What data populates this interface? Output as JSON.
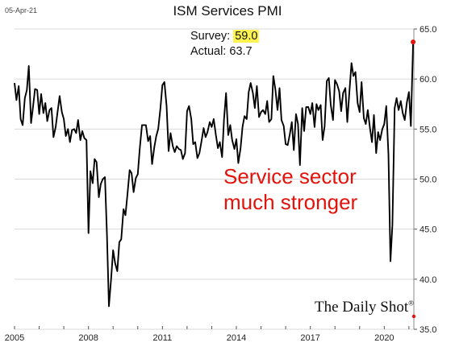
{
  "stamp": "05-Apr-21",
  "annotations": {
    "survey_label": "Survey:",
    "survey_value": "59.0",
    "actual_label": "Actual:",
    "actual_value": "63.7",
    "callout_line1": "Service sector",
    "callout_line2": "much stronger"
  },
  "brand": {
    "name": "The Daily Shot",
    "mark": "®"
  },
  "colors": {
    "line": "#000000",
    "highlight": "#fff44f",
    "marker": "#e3120b",
    "callout": "#e3120b",
    "grid": "#d9d9d9"
  },
  "chart_data": {
    "type": "line",
    "title": "ISM Services PMI",
    "xlabel": "",
    "ylabel": "",
    "x_ticks": [
      "2005",
      "2008",
      "2011",
      "2014",
      "2017",
      "2020"
    ],
    "y_ticks": [
      "35.0",
      "40.0",
      "45.0",
      "50.0",
      "55.0",
      "60.0",
      "65.0"
    ],
    "ylim": [
      35,
      65
    ],
    "xlim": [
      2005.0,
      2021.2
    ],
    "y_axis_position": "right",
    "grid": "horizontal",
    "series": [
      {
        "values": [
          [
            2005.0,
            59.6
          ],
          [
            2005.08,
            57.9
          ],
          [
            2005.17,
            59.3
          ],
          [
            2005.25,
            56.0
          ],
          [
            2005.33,
            55.4
          ],
          [
            2005.42,
            58.1
          ],
          [
            2005.5,
            58.9
          ],
          [
            2005.58,
            61.3
          ],
          [
            2005.67,
            55.6
          ],
          [
            2005.75,
            57.2
          ],
          [
            2005.83,
            59.0
          ],
          [
            2005.92,
            58.9
          ],
          [
            2006.0,
            56.5
          ],
          [
            2006.08,
            58.5
          ],
          [
            2006.17,
            56.6
          ],
          [
            2006.25,
            57.6
          ],
          [
            2006.33,
            55.8
          ],
          [
            2006.42,
            56.9
          ],
          [
            2006.5,
            57.1
          ],
          [
            2006.58,
            54.2
          ],
          [
            2006.67,
            55.2
          ],
          [
            2006.75,
            56.8
          ],
          [
            2006.83,
            58.3
          ],
          [
            2006.92,
            56.7
          ],
          [
            2007.0,
            56.0
          ],
          [
            2007.08,
            54.3
          ],
          [
            2007.17,
            55.0
          ],
          [
            2007.25,
            53.7
          ],
          [
            2007.33,
            54.9
          ],
          [
            2007.42,
            55.0
          ],
          [
            2007.5,
            54.6
          ],
          [
            2007.58,
            55.9
          ],
          [
            2007.67,
            53.9
          ],
          [
            2007.75,
            54.8
          ],
          [
            2007.83,
            54.1
          ],
          [
            2007.92,
            53.9
          ],
          [
            2008.0,
            44.6
          ],
          [
            2008.08,
            50.8
          ],
          [
            2008.17,
            49.6
          ],
          [
            2008.25,
            52.0
          ],
          [
            2008.33,
            51.7
          ],
          [
            2008.42,
            48.2
          ],
          [
            2008.5,
            49.5
          ],
          [
            2008.58,
            50.0
          ],
          [
            2008.67,
            50.2
          ],
          [
            2008.75,
            44.4
          ],
          [
            2008.83,
            37.3
          ],
          [
            2008.92,
            40.1
          ],
          [
            2009.0,
            42.9
          ],
          [
            2009.08,
            41.6
          ],
          [
            2009.17,
            40.8
          ],
          [
            2009.25,
            43.7
          ],
          [
            2009.33,
            44.0
          ],
          [
            2009.42,
            47.0
          ],
          [
            2009.5,
            46.4
          ],
          [
            2009.58,
            48.4
          ],
          [
            2009.67,
            50.9
          ],
          [
            2009.75,
            50.6
          ],
          [
            2009.83,
            48.7
          ],
          [
            2009.92,
            50.1
          ],
          [
            2010.0,
            50.5
          ],
          [
            2010.08,
            53.0
          ],
          [
            2010.17,
            55.4
          ],
          [
            2010.25,
            55.4
          ],
          [
            2010.33,
            55.4
          ],
          [
            2010.42,
            53.8
          ],
          [
            2010.5,
            54.3
          ],
          [
            2010.58,
            51.5
          ],
          [
            2010.67,
            53.2
          ],
          [
            2010.75,
            54.3
          ],
          [
            2010.83,
            55.0
          ],
          [
            2010.92,
            57.1
          ],
          [
            2011.0,
            59.4
          ],
          [
            2011.08,
            59.7
          ],
          [
            2011.17,
            57.3
          ],
          [
            2011.25,
            52.8
          ],
          [
            2011.33,
            54.6
          ],
          [
            2011.42,
            53.3
          ],
          [
            2011.5,
            52.7
          ],
          [
            2011.58,
            53.3
          ],
          [
            2011.67,
            53.0
          ],
          [
            2011.75,
            52.9
          ],
          [
            2011.83,
            52.0
          ],
          [
            2011.92,
            52.6
          ],
          [
            2012.0,
            56.8
          ],
          [
            2012.08,
            57.3
          ],
          [
            2012.17,
            56.0
          ],
          [
            2012.25,
            53.5
          ],
          [
            2012.33,
            53.7
          ],
          [
            2012.42,
            52.1
          ],
          [
            2012.5,
            52.6
          ],
          [
            2012.58,
            53.7
          ],
          [
            2012.67,
            55.1
          ],
          [
            2012.75,
            54.2
          ],
          [
            2012.83,
            54.7
          ],
          [
            2012.92,
            55.7
          ],
          [
            2013.0,
            55.2
          ],
          [
            2013.08,
            56.0
          ],
          [
            2013.17,
            54.4
          ],
          [
            2013.25,
            53.1
          ],
          [
            2013.33,
            53.7
          ],
          [
            2013.42,
            52.2
          ],
          [
            2013.5,
            56.0
          ],
          [
            2013.58,
            58.6
          ],
          [
            2013.67,
            54.4
          ],
          [
            2013.75,
            55.4
          ],
          [
            2013.83,
            53.9
          ],
          [
            2013.92,
            53.0
          ],
          [
            2014.0,
            54.0
          ],
          [
            2014.08,
            51.6
          ],
          [
            2014.17,
            53.1
          ],
          [
            2014.25,
            55.2
          ],
          [
            2014.33,
            56.3
          ],
          [
            2014.42,
            56.0
          ],
          [
            2014.5,
            58.7
          ],
          [
            2014.58,
            59.6
          ],
          [
            2014.67,
            58.6
          ],
          [
            2014.75,
            57.1
          ],
          [
            2014.83,
            59.3
          ],
          [
            2014.92,
            56.2
          ],
          [
            2015.0,
            56.7
          ],
          [
            2015.08,
            56.9
          ],
          [
            2015.17,
            56.5
          ],
          [
            2015.25,
            57.8
          ],
          [
            2015.33,
            55.7
          ],
          [
            2015.42,
            56.0
          ],
          [
            2015.5,
            60.3
          ],
          [
            2015.58,
            59.0
          ],
          [
            2015.67,
            56.9
          ],
          [
            2015.75,
            59.1
          ],
          [
            2015.83,
            55.9
          ],
          [
            2015.92,
            55.3
          ],
          [
            2016.0,
            53.5
          ],
          [
            2016.08,
            53.4
          ],
          [
            2016.17,
            54.5
          ],
          [
            2016.25,
            55.7
          ],
          [
            2016.33,
            52.9
          ],
          [
            2016.42,
            56.5
          ],
          [
            2016.5,
            55.5
          ],
          [
            2016.58,
            51.4
          ],
          [
            2016.67,
            57.1
          ],
          [
            2016.75,
            54.8
          ],
          [
            2016.83,
            57.2
          ],
          [
            2016.92,
            57.2
          ],
          [
            2017.0,
            56.5
          ],
          [
            2017.08,
            57.6
          ],
          [
            2017.17,
            55.2
          ],
          [
            2017.25,
            57.5
          ],
          [
            2017.33,
            56.9
          ],
          [
            2017.42,
            57.4
          ],
          [
            2017.5,
            53.9
          ],
          [
            2017.58,
            55.3
          ],
          [
            2017.67,
            59.8
          ],
          [
            2017.75,
            60.1
          ],
          [
            2017.83,
            57.4
          ],
          [
            2017.92,
            55.9
          ],
          [
            2018.0,
            59.9
          ],
          [
            2018.08,
            59.5
          ],
          [
            2018.17,
            58.8
          ],
          [
            2018.25,
            56.8
          ],
          [
            2018.33,
            58.6
          ],
          [
            2018.42,
            59.1
          ],
          [
            2018.5,
            55.7
          ],
          [
            2018.58,
            58.5
          ],
          [
            2018.67,
            61.6
          ],
          [
            2018.75,
            60.3
          ],
          [
            2018.83,
            60.7
          ],
          [
            2018.92,
            57.6
          ],
          [
            2019.0,
            56.7
          ],
          [
            2019.08,
            59.7
          ],
          [
            2019.17,
            56.1
          ],
          [
            2019.25,
            55.5
          ],
          [
            2019.33,
            56.9
          ],
          [
            2019.42,
            55.1
          ],
          [
            2019.5,
            53.7
          ],
          [
            2019.58,
            56.4
          ],
          [
            2019.67,
            52.6
          ],
          [
            2019.75,
            54.7
          ],
          [
            2019.83,
            53.9
          ],
          [
            2019.92,
            55.0
          ],
          [
            2020.0,
            55.5
          ],
          [
            2020.08,
            57.3
          ],
          [
            2020.17,
            52.5
          ],
          [
            2020.25,
            41.8
          ],
          [
            2020.33,
            45.4
          ],
          [
            2020.42,
            57.1
          ],
          [
            2020.5,
            58.1
          ],
          [
            2020.58,
            56.9
          ],
          [
            2020.67,
            57.8
          ],
          [
            2020.75,
            56.6
          ],
          [
            2020.83,
            55.9
          ],
          [
            2020.92,
            57.7
          ],
          [
            2021.0,
            58.7
          ],
          [
            2021.08,
            55.3
          ],
          [
            2021.17,
            63.7
          ]
        ]
      }
    ],
    "highlight_point": [
      2021.17,
      63.7
    ]
  }
}
